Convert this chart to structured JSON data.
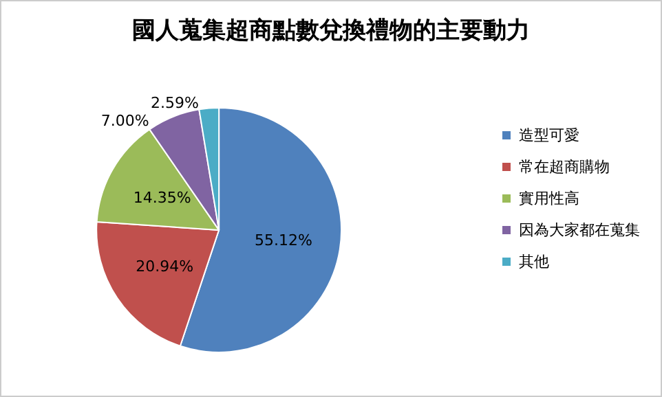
{
  "chart_data": {
    "type": "pie",
    "title": "國人蒐集超商點數兌換禮物的主要動力",
    "categories": [
      "造型可愛",
      "常在超商購物",
      "實用性高",
      "因為大家都在蒐集",
      "其他"
    ],
    "values": [
      55.12,
      20.94,
      14.35,
      7.0,
      2.59
    ],
    "value_labels": [
      "55.12%",
      "20.94%",
      "14.35%",
      "7.00%",
      "2.59%"
    ],
    "colors": [
      "#4f81bd",
      "#c0504d",
      "#9bbb59",
      "#8064a2",
      "#4bacc6"
    ],
    "legend": "right"
  }
}
